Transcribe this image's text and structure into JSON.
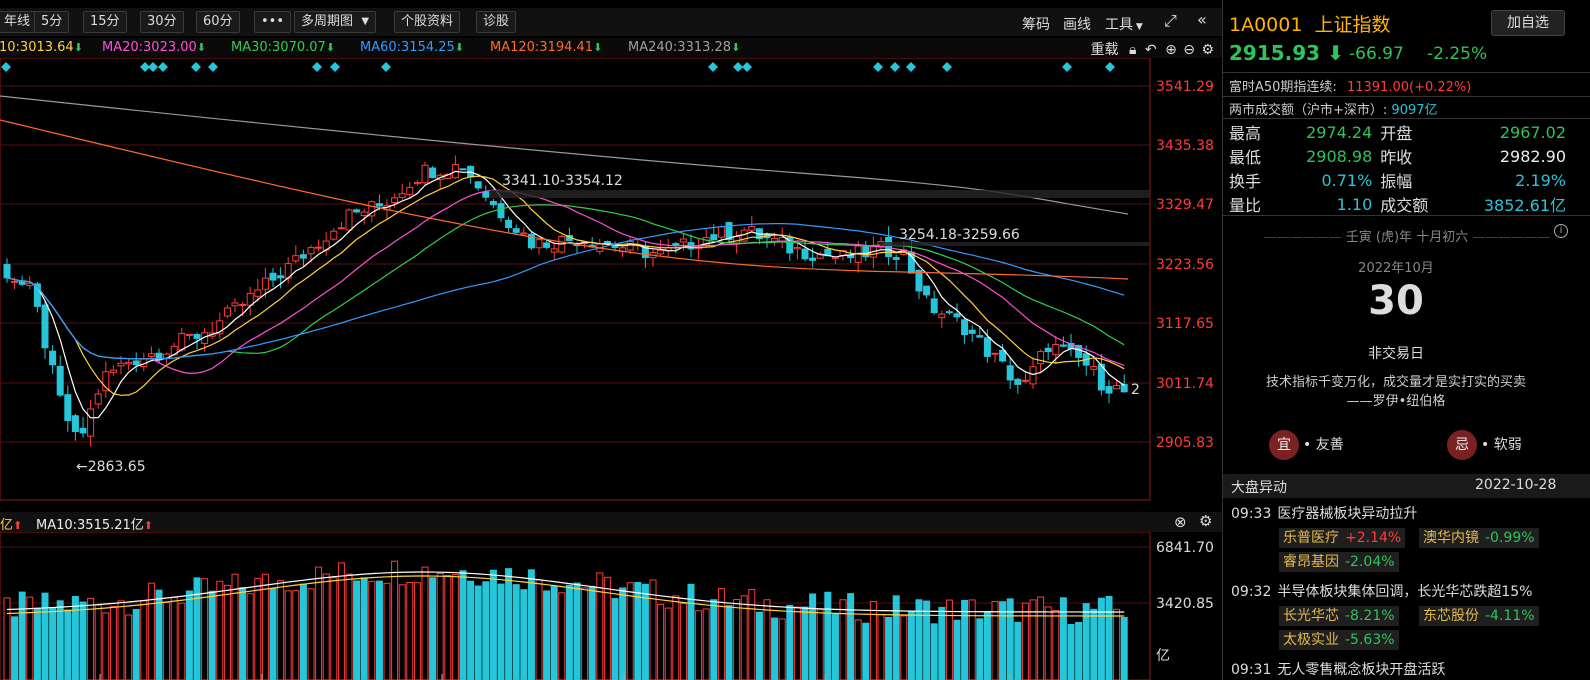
{
  "toolbar": {
    "partial_left": "年线",
    "buttons": [
      "5分",
      "15分",
      "30分",
      "60分",
      "•••",
      "多周期图",
      "个股资料",
      "诊股"
    ],
    "right_items": [
      "筹码",
      "画线",
      "工具"
    ]
  },
  "ma": [
    {
      "label": "10:3013.64",
      "color": "#ffd23c"
    },
    {
      "label": "MA20:3023.00",
      "color": "#ff4fd8"
    },
    {
      "label": "MA30:3070.07",
      "color": "#2dd04a"
    },
    {
      "label": "MA60:3154.25",
      "color": "#3399ff"
    },
    {
      "label": "MA120:3194.41",
      "color": "#ff6a2a"
    },
    {
      "label": "MA240:3313.28",
      "color": "#a0a0a0"
    }
  ],
  "ma_tools": {
    "reset": "重载"
  },
  "price_axis": [
    "3541.29",
    "3435.38",
    "3329.47",
    "3223.56",
    "3117.65",
    "3011.74",
    "2905.83"
  ],
  "annotations": {
    "low": "←2863.65",
    "range1": "3341.10-3354.12",
    "range2": "3254.18-3259.66",
    "right_mark": "2"
  },
  "volume": {
    "partial_label": "亿",
    "ma10": "MA10:3515.21亿",
    "axis": [
      "6841.70",
      "3420.85"
    ],
    "unit": "亿"
  },
  "stock": {
    "code": "1A0001",
    "name": "上证指数",
    "add_fav": "加自选",
    "price": "2915.93",
    "change": "-66.97",
    "change_pct": "-2.25%",
    "a50_label": "富时A50期指连续:",
    "a50_value": "11391.00(+0.22%)",
    "turnover_label": "两市成交额（沪市+深市）:",
    "turnover_value": "9097亿"
  },
  "quote": [
    {
      "l1": "最高",
      "v1": "2974.24",
      "c1": "green",
      "l2": "开盘",
      "v2": "2967.02",
      "c2": "green"
    },
    {
      "l1": "最低",
      "v1": "2908.98",
      "c1": "green",
      "l2": "昨收",
      "v2": "2982.90",
      "c2": "white"
    },
    {
      "l1": "换手",
      "v1": "0.71%",
      "c1": "cyan",
      "l2": "振幅",
      "v2": "2.19%",
      "c2": "cyan"
    },
    {
      "l1": "量比",
      "v1": "1.10",
      "c1": "cyan",
      "l2": "成交额",
      "v2": "3852.61亿",
      "c2": "cyan"
    }
  ],
  "calendar": {
    "lunar": "壬寅 (虎)年 十月初六",
    "month": "2022年10月",
    "day": "30",
    "status": "非交易日",
    "quote_line1": "技术指标千变万化，成交量才是实打实的买卖",
    "quote_line2": "——罗伊•纽伯格",
    "yi_char": "宜",
    "yi_text": "• 友善",
    "ji_char": "忌",
    "ji_text": "• 软弱"
  },
  "movement": {
    "title": "大盘异动",
    "date": "2022-10-28",
    "events": [
      {
        "time": "09:33",
        "text": "医疗器械板块异动拉升",
        "stocks": [
          {
            "name": "乐普医疗",
            "pct": "+2.14%",
            "color": "red"
          },
          {
            "name": "澳华内镜",
            "pct": "-0.99%",
            "color": "green"
          },
          {
            "name": "睿昂基因",
            "pct": "-2.04%",
            "color": "green"
          }
        ]
      },
      {
        "time": "09:32",
        "text": "半导体板块集体回调，长光华芯跌超15%",
        "stocks": [
          {
            "name": "长光华芯",
            "pct": "-8.21%",
            "color": "green"
          },
          {
            "name": "东芯股份",
            "pct": "-4.11%",
            "color": "green"
          },
          {
            "name": "太极实业",
            "pct": "-5.63%",
            "color": "green"
          }
        ]
      },
      {
        "time": "09:31",
        "text": "无人零售概念板块开盘活跃",
        "stocks": []
      }
    ]
  }
}
